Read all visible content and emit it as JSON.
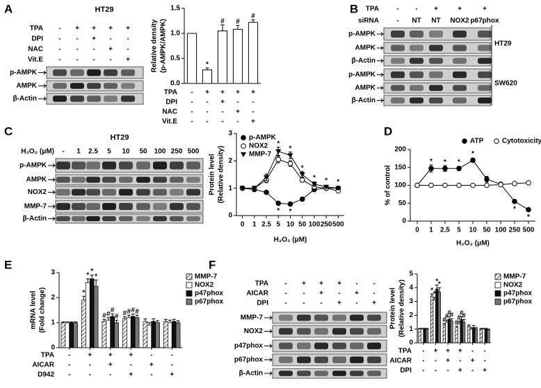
{
  "panels": [
    "A",
    "B",
    "C",
    "D",
    "E",
    "F"
  ],
  "blots": {
    "A": {
      "title": "HT29",
      "conditions": [
        {
          "label": "TPA",
          "signs": [
            "-",
            "+",
            "+",
            "+",
            "+"
          ]
        },
        {
          "label": "DPI",
          "signs": [
            "-",
            "-",
            "+",
            "-",
            "-"
          ]
        },
        {
          "label": "NAC",
          "signs": [
            "-",
            "-",
            "-",
            "+",
            "-"
          ]
        },
        {
          "label": "Vit.E",
          "signs": [
            "-",
            "-",
            "-",
            "-",
            "+"
          ]
        }
      ],
      "rows": [
        "p-AMPK",
        "AMPK",
        "β-Actin"
      ]
    },
    "B": {
      "conditions": [
        {
          "label": "TPA",
          "signs": [
            "-",
            "-",
            "+",
            "+",
            "+"
          ]
        },
        {
          "label": "siRNA",
          "signs": [
            "-",
            "NT",
            "NT",
            "NOX2",
            "p67phox"
          ]
        }
      ],
      "groups": [
        {
          "label": "HT29",
          "rows": [
            "p-AMPK",
            "AMPK",
            "β-Actin"
          ]
        },
        {
          "label": "SW620",
          "rows": [
            "p-AMPK",
            "AMPK",
            "β-Actin"
          ]
        }
      ]
    },
    "C": {
      "title": "HT29",
      "conditions": [
        {
          "label": "H₂O₂ (μM)",
          "signs": [
            "-",
            "1",
            "2.5",
            "5",
            "10",
            "50",
            "100",
            "250",
            "500"
          ]
        }
      ],
      "rows": [
        "p-AMPK",
        "AMPK",
        "NOX2",
        "MMP-7",
        "β-Actin"
      ]
    },
    "F": {
      "conditions": [
        {
          "label": "TPA",
          "signs": [
            "-",
            "+",
            "+",
            "+",
            "-",
            "-"
          ]
        },
        {
          "label": "AICAR",
          "signs": [
            "-",
            "-",
            "+",
            "-",
            "+",
            "-"
          ]
        },
        {
          "label": "DPI",
          "signs": [
            "-",
            "-",
            "-",
            "+",
            "-",
            "+"
          ]
        }
      ],
      "rows": [
        "MMP-7",
        "NOX2",
        "p47phox",
        "p67phox",
        "β-Actin"
      ]
    }
  },
  "chart_data": [
    {
      "type": "bar",
      "ylabel": [
        "Relative density",
        "(p-AMPK/AMPK)"
      ],
      "values": [
        1.0,
        0.27,
        1.05,
        1.08,
        1.22
      ],
      "errors": [
        null,
        0.04,
        0.12,
        0.08,
        0.05
      ],
      "annotations": [
        null,
        "*",
        "#",
        "#",
        "#"
      ],
      "color": "#ffffff",
      "ylim": [
        0,
        1.5
      ],
      "yticks": [
        {
          "value": 0,
          "label": "0.0"
        },
        {
          "value": 0.5,
          "label": "0.5"
        },
        {
          "value": 1,
          "label": "1.0"
        },
        {
          "value": 1.5,
          "label": "1.5"
        }
      ],
      "conditions": [
        {
          "label": "TPA",
          "signs": [
            "-",
            "+",
            "+",
            "+",
            "+"
          ]
        },
        {
          "label": "DPI",
          "signs": [
            "-",
            "-",
            "+",
            "-",
            "-"
          ]
        },
        {
          "label": "NAC",
          "signs": [
            "-",
            "-",
            "-",
            "+",
            "-"
          ]
        },
        {
          "label": "Vit.E",
          "signs": [
            "-",
            "-",
            "-",
            "-",
            "+"
          ]
        }
      ]
    },
    {
      "type": "line",
      "ylabel": [
        "Protein level",
        "(Relative density)"
      ],
      "xlabel": "H₂O₂ (μM)",
      "categories": [
        "0",
        "1",
        "2.5",
        "5",
        "10",
        "50",
        "100",
        "250",
        "500"
      ],
      "ylim": [
        0,
        3
      ],
      "yticks": [
        0,
        1,
        2,
        3
      ],
      "legend": "upper left",
      "series": [
        {
          "name": "p-AMPK",
          "color": "#000000",
          "marker": "circle",
          "values": [
            1,
            0.95,
            0.85,
            0.45,
            0.42,
            0.6,
            0.95,
            1.0,
            1.0
          ],
          "errors": [
            0.03,
            0.05,
            0.05,
            0.04,
            0.04,
            0.05,
            0.05,
            0.04,
            0.04
          ],
          "annotations": [
            null,
            null,
            null,
            "*",
            "*",
            null,
            null,
            null,
            null
          ]
        },
        {
          "name": "NOX2",
          "color": "#000000",
          "marker": "open-circle",
          "values": [
            1,
            1.0,
            1.3,
            2.05,
            1.9,
            1.3,
            1.05,
            1.0,
            0.9
          ],
          "errors": [
            0.03,
            0.05,
            0.1,
            0.12,
            0.1,
            0.08,
            0.06,
            0.05,
            0.05
          ],
          "annotations": [
            null,
            null,
            null,
            "*",
            "*",
            "*",
            null,
            null,
            null
          ]
        },
        {
          "name": "MMP-7",
          "color": "#000000",
          "marker": "triangle",
          "values": [
            1,
            1.0,
            1.4,
            2.35,
            2.2,
            1.5,
            1.15,
            1.05,
            1.0
          ],
          "errors": [
            0.03,
            0.05,
            0.12,
            0.15,
            0.12,
            0.1,
            0.08,
            0.05,
            0.05
          ],
          "annotations": [
            null,
            null,
            null,
            "*",
            "*",
            "*",
            "*",
            "*",
            "*"
          ]
        }
      ]
    },
    {
      "type": "line",
      "ylabel": [
        "% of control"
      ],
      "xlabel": "H₂O₂ (μM)",
      "categories": [
        "0",
        "1",
        "2.5",
        "5",
        "10",
        "50",
        "100",
        "250",
        "500"
      ],
      "ylim": [
        0,
        200
      ],
      "yticks": [
        0,
        50,
        100,
        150,
        200
      ],
      "legend": "top",
      "series": [
        {
          "name": "ATP",
          "color": "#000000",
          "marker": "circle",
          "values": [
            100,
            147,
            147,
            147,
            170,
            117,
            103,
            55,
            32
          ],
          "errors": [
            5,
            10,
            8,
            6,
            6,
            8,
            5,
            4,
            3
          ],
          "annotations": [
            null,
            "*",
            "*",
            "*",
            "*",
            null,
            null,
            "*",
            "*"
          ]
        },
        {
          "name": "Cytotoxicity",
          "color": "#000000",
          "marker": "open-circle",
          "values": [
            100,
            100,
            100,
            100,
            100,
            100,
            102,
            105,
            107
          ],
          "errors": [
            5,
            5,
            4,
            3,
            3,
            3,
            3,
            3,
            3
          ],
          "annotations": [
            null,
            null,
            null,
            null,
            null,
            null,
            null,
            null,
            null
          ]
        }
      ]
    },
    {
      "type": "grouped_bar",
      "ylabel": [
        "mRNA level",
        "(Fold change)"
      ],
      "ylim": [
        0,
        3
      ],
      "yticks": [
        0,
        1,
        2,
        3
      ],
      "legend": "right",
      "series": [
        {
          "name": "MMP-7",
          "color": "#bbbbbb",
          "pattern": "hatch",
          "values": [
            1,
            1.9,
            1.05,
            1.15,
            1.05,
            1.05
          ],
          "errors": [
            0.03,
            0.15,
            0.08,
            0.08,
            0.1,
            0.08
          ],
          "annotations": [
            null,
            "*",
            "#",
            "#",
            null,
            null
          ]
        },
        {
          "name": "NOX2",
          "color": "#ffffff",
          "values": [
            1,
            2.6,
            1.1,
            1.2,
            0.9,
            1.0
          ],
          "errors": [
            0.03,
            0.15,
            0.1,
            0.1,
            0.1,
            0.1
          ],
          "annotations": [
            null,
            "*",
            "#",
            "#",
            null,
            null
          ]
        },
        {
          "name": "p47phox",
          "color": "#111111",
          "values": [
            1,
            2.75,
            1.25,
            1.25,
            1.05,
            1.05
          ],
          "errors": [
            0.03,
            0.15,
            0.1,
            0.1,
            0.1,
            0.08
          ],
          "annotations": [
            null,
            "*",
            "#",
            "#",
            null,
            null
          ]
        },
        {
          "name": "p67phox",
          "color": "#777777",
          "values": [
            1,
            2.45,
            1.0,
            1.2,
            1.0,
            1.0
          ],
          "errors": [
            0.03,
            0.25,
            0.1,
            0.1,
            0.08,
            0.08
          ],
          "annotations": [
            null,
            "*",
            "#",
            "#",
            null,
            null
          ]
        }
      ],
      "conditions": [
        {
          "label": "TPA",
          "signs": [
            "-",
            "+",
            "+",
            "+",
            "-",
            "-"
          ]
        },
        {
          "label": "AICAR",
          "signs": [
            "-",
            "-",
            "+",
            "-",
            "+",
            "-"
          ]
        },
        {
          "label": "D942",
          "signs": [
            "-",
            "-",
            "-",
            "+",
            "-",
            "+"
          ]
        }
      ]
    },
    {
      "type": "grouped_bar",
      "ylabel": [
        "Protein level",
        "(Relative density)"
      ],
      "ylim": [
        0,
        5
      ],
      "yticks": [
        0,
        1,
        2,
        3,
        4,
        5
      ],
      "legend": "right",
      "series": [
        {
          "name": "MMP-7",
          "color": "#bbbbbb",
          "pattern": "hatch",
          "values": [
            1,
            3.4,
            1.3,
            1.1,
            1.2,
            1.0
          ],
          "errors": [
            0.05,
            0.15,
            0.1,
            0.1,
            0.1,
            0.05
          ],
          "annotations": [
            null,
            "*",
            "#",
            "#",
            null,
            null
          ]
        },
        {
          "name": "NOX2",
          "color": "#ffffff",
          "values": [
            1,
            3.1,
            1.5,
            1.4,
            1.0,
            1.0
          ],
          "errors": [
            0.05,
            0.2,
            0.15,
            0.15,
            0.1,
            0.05
          ],
          "annotations": [
            null,
            "*",
            "#",
            "#",
            null,
            null
          ]
        },
        {
          "name": "p47phox",
          "color": "#111111",
          "values": [
            1,
            3.9,
            1.7,
            1.7,
            1.1,
            1.0
          ],
          "errors": [
            0.05,
            0.3,
            0.2,
            0.2,
            0.15,
            0.05
          ],
          "annotations": [
            null,
            "*",
            "#",
            "#",
            null,
            null
          ]
        },
        {
          "name": "p67phox",
          "color": "#777777",
          "values": [
            1,
            3.7,
            1.6,
            1.5,
            1.0,
            0.95
          ],
          "errors": [
            0.05,
            0.3,
            0.15,
            0.2,
            0.1,
            0.05
          ],
          "annotations": [
            null,
            "*",
            "#",
            "#",
            null,
            null
          ]
        }
      ],
      "conditions": [
        {
          "label": "TPA",
          "signs": [
            "-",
            "+",
            "+",
            "+",
            "-",
            "-"
          ]
        },
        {
          "label": "AICAR",
          "signs": [
            "-",
            "-",
            "+",
            "-",
            "+",
            "-"
          ]
        },
        {
          "label": "DPI",
          "signs": [
            "-",
            "-",
            "-",
            "+",
            "-",
            "+"
          ]
        }
      ]
    }
  ]
}
